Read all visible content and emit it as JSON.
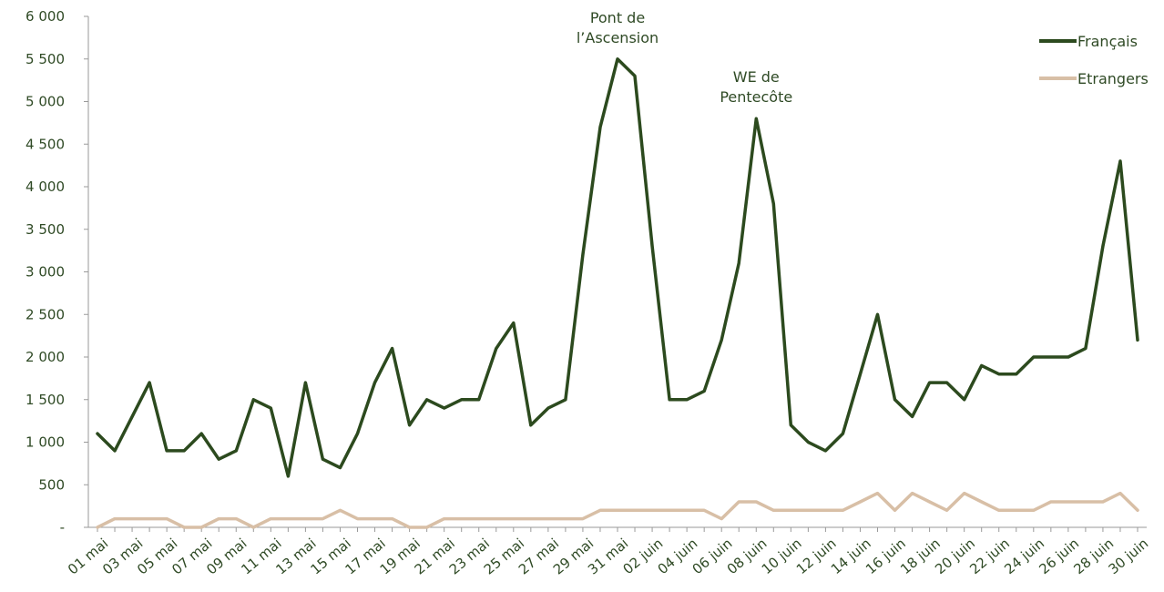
{
  "chart_data": {
    "type": "line",
    "title": "",
    "xlabel": "",
    "ylabel": "",
    "ylim": [
      0,
      6000
    ],
    "yticks": [
      {
        "value": 0,
        "label": "-"
      },
      {
        "value": 500,
        "label": "500"
      },
      {
        "value": 1000,
        "label": "1 000"
      },
      {
        "value": 1500,
        "label": "1 500"
      },
      {
        "value": 2000,
        "label": "2 000"
      },
      {
        "value": 2500,
        "label": "2 500"
      },
      {
        "value": 3000,
        "label": "3 000"
      },
      {
        "value": 3500,
        "label": "3 500"
      },
      {
        "value": 4000,
        "label": "4 000"
      },
      {
        "value": 4500,
        "label": "4 500"
      },
      {
        "value": 5000,
        "label": "5 000"
      },
      {
        "value": 5500,
        "label": "5 500"
      },
      {
        "value": 6000,
        "label": "6 000"
      }
    ],
    "x": [
      "01 mai",
      "02 mai",
      "03 mai",
      "04 mai",
      "05 mai",
      "06 mai",
      "07 mai",
      "08 mai",
      "09 mai",
      "10 mai",
      "11 mai",
      "12 mai",
      "13 mai",
      "14 mai",
      "15 mai",
      "16 mai",
      "17 mai",
      "18 mai",
      "19 mai",
      "20 mai",
      "21 mai",
      "22 mai",
      "23 mai",
      "24 mai",
      "25 mai",
      "26 mai",
      "27 mai",
      "28 mai",
      "29 mai",
      "30 mai",
      "31 mai",
      "01 juin",
      "02 juin",
      "03 juin",
      "04 juin",
      "05 juin",
      "06 juin",
      "07 juin",
      "08 juin",
      "09 juin",
      "10 juin",
      "11 juin",
      "12 juin",
      "13 juin",
      "14 juin",
      "15 juin",
      "16 juin",
      "17 juin",
      "18 juin",
      "19 juin",
      "20 juin",
      "21 juin",
      "22 juin",
      "23 juin",
      "24 juin",
      "25 juin",
      "26 juin",
      "27 juin",
      "28 juin",
      "29 juin",
      "30 juin"
    ],
    "xtick_labels": [
      "01 mai",
      "03 mai",
      "05 mai",
      "07 mai",
      "09 mai",
      "11 mai",
      "13 mai",
      "15 mai",
      "17 mai",
      "19 mai",
      "21 mai",
      "23 mai",
      "25 mai",
      "27 mai",
      "29 mai",
      "31 mai",
      "02 juin",
      "04 juin",
      "06 juin",
      "08 juin",
      "10 juin",
      "12 juin",
      "14 juin",
      "16 juin",
      "18 juin",
      "20 juin",
      "22 juin",
      "24 juin",
      "26 juin",
      "28 juin",
      "30 juin"
    ],
    "series": [
      {
        "name": "Français",
        "color": "#2c4a1e",
        "values": [
          1100,
          900,
          1300,
          1700,
          900,
          900,
          1100,
          800,
          900,
          1500,
          1400,
          600,
          1700,
          800,
          700,
          1100,
          1700,
          2100,
          1200,
          1500,
          1400,
          1500,
          1500,
          2100,
          2400,
          1200,
          1400,
          1500,
          3200,
          4700,
          5500,
          5300,
          3300,
          1500,
          1500,
          1600,
          2200,
          3100,
          4800,
          3800,
          1200,
          1000,
          900,
          1100,
          1800,
          2500,
          1500,
          1300,
          1700,
          1700,
          1500,
          1900,
          1800,
          1800,
          2000,
          2000,
          2000,
          2100,
          3300,
          4300,
          2200
        ]
      },
      {
        "name": "Etrangers",
        "color": "#d8bfa6",
        "values": [
          0,
          100,
          100,
          100,
          100,
          0,
          0,
          100,
          100,
          0,
          100,
          100,
          100,
          100,
          200,
          100,
          100,
          100,
          0,
          0,
          100,
          100,
          100,
          100,
          100,
          100,
          100,
          100,
          100,
          200,
          200,
          200,
          200,
          200,
          200,
          200,
          100,
          300,
          300,
          200,
          200,
          200,
          200,
          200,
          300,
          400,
          200,
          400,
          300,
          200,
          400,
          300,
          200,
          200,
          200,
          300,
          300,
          300,
          300,
          400,
          200
        ]
      }
    ],
    "annotations": [
      {
        "lines": [
          "Pont de",
          "l’Ascension"
        ],
        "x": "31 mai",
        "y": 5500
      },
      {
        "lines": [
          "WE de",
          "Pentecôte"
        ],
        "x": "08 juin",
        "y": 4800
      }
    ],
    "legend": {
      "placement": "top-right"
    },
    "grid": false
  }
}
